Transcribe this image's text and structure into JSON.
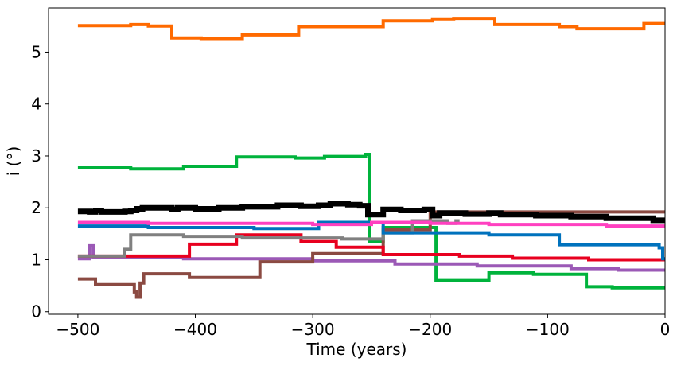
{
  "chart_data": {
    "type": "line",
    "title": "",
    "xlabel": "Time (years)",
    "ylabel": "i (°)",
    "xlim": [
      -525,
      0
    ],
    "ylim": [
      -0.05,
      5.85
    ],
    "xticks": [
      -500,
      -400,
      -300,
      -200,
      -100,
      0
    ],
    "xtick_labels": [
      "−500",
      "−400",
      "−300",
      "−200",
      "−100",
      "0"
    ],
    "yticks": [
      0,
      1,
      2,
      3,
      4,
      5
    ],
    "ytick_labels": [
      "0",
      "1",
      "2",
      "3",
      "4",
      "5"
    ],
    "grid": false,
    "legend": "none",
    "series": [
      {
        "color": "#ff6a00",
        "width": 4,
        "points": [
          [
            -500,
            5.51
          ],
          [
            -455,
            5.51
          ],
          [
            -455,
            5.53
          ],
          [
            -440,
            5.53
          ],
          [
            -440,
            5.5
          ],
          [
            -420,
            5.5
          ],
          [
            -420,
            5.27
          ],
          [
            -395,
            5.27
          ],
          [
            -395,
            5.26
          ],
          [
            -360,
            5.26
          ],
          [
            -360,
            5.33
          ],
          [
            -312,
            5.33
          ],
          [
            -312,
            5.49
          ],
          [
            -240,
            5.49
          ],
          [
            -240,
            5.6
          ],
          [
            -198,
            5.6
          ],
          [
            -198,
            5.64
          ],
          [
            -180,
            5.64
          ],
          [
            -180,
            5.65
          ],
          [
            -145,
            5.65
          ],
          [
            -145,
            5.53
          ],
          [
            -90,
            5.53
          ],
          [
            -90,
            5.49
          ],
          [
            -75,
            5.49
          ],
          [
            -75,
            5.45
          ],
          [
            -18,
            5.45
          ],
          [
            -18,
            5.55
          ],
          [
            0,
            5.55
          ]
        ]
      },
      {
        "color": "#00b33c",
        "width": 4,
        "points": [
          [
            -500,
            2.77
          ],
          [
            -455,
            2.77
          ],
          [
            -455,
            2.75
          ],
          [
            -410,
            2.75
          ],
          [
            -410,
            2.8
          ],
          [
            -365,
            2.8
          ],
          [
            -365,
            2.98
          ],
          [
            -315,
            2.98
          ],
          [
            -315,
            2.96
          ],
          [
            -290,
            2.96
          ],
          [
            -290,
            2.99
          ],
          [
            -255,
            2.99
          ],
          [
            -255,
            3.03
          ],
          [
            -252,
            3.03
          ],
          [
            -252,
            1.35
          ],
          [
            -240,
            1.35
          ],
          [
            -240,
            1.62
          ],
          [
            -195,
            1.62
          ],
          [
            -195,
            0.6
          ],
          [
            -150,
            0.6
          ],
          [
            -150,
            0.75
          ],
          [
            -112,
            0.75
          ],
          [
            -112,
            0.72
          ],
          [
            -67,
            0.72
          ],
          [
            -67,
            0.48
          ],
          [
            -45,
            0.48
          ],
          [
            -45,
            0.46
          ],
          [
            0,
            0.46
          ]
        ]
      },
      {
        "color": "#9b59b6",
        "width": 4,
        "points": [
          [
            -500,
            1.02
          ],
          [
            -490,
            1.02
          ],
          [
            -490,
            1.27
          ],
          [
            -487,
            1.27
          ],
          [
            -487,
            1.05
          ],
          [
            -410,
            1.05
          ],
          [
            -410,
            1.02
          ],
          [
            -300,
            1.02
          ],
          [
            -300,
            0.98
          ],
          [
            -230,
            0.98
          ],
          [
            -230,
            0.92
          ],
          [
            -160,
            0.92
          ],
          [
            -160,
            0.88
          ],
          [
            -80,
            0.88
          ],
          [
            -80,
            0.83
          ],
          [
            -40,
            0.83
          ],
          [
            -40,
            0.8
          ],
          [
            0,
            0.8
          ]
        ]
      },
      {
        "color": "#8b4a42",
        "width": 4,
        "points": [
          [
            -500,
            0.63
          ],
          [
            -485,
            0.63
          ],
          [
            -485,
            0.52
          ],
          [
            -452,
            0.52
          ],
          [
            -452,
            0.38
          ],
          [
            -450,
            0.38
          ],
          [
            -450,
            0.28
          ],
          [
            -447,
            0.28
          ],
          [
            -447,
            0.55
          ],
          [
            -444,
            0.55
          ],
          [
            -444,
            0.73
          ],
          [
            -405,
            0.73
          ],
          [
            -405,
            0.66
          ],
          [
            -345,
            0.66
          ],
          [
            -345,
            0.96
          ],
          [
            -300,
            0.96
          ],
          [
            -300,
            1.12
          ],
          [
            -240,
            1.12
          ],
          [
            -240,
            1.58
          ],
          [
            -200,
            1.58
          ],
          [
            -200,
            1.92
          ],
          [
            0,
            1.92
          ]
        ]
      },
      {
        "color": "#e8001f",
        "width": 4,
        "points": [
          [
            -500,
            1.07
          ],
          [
            -405,
            1.07
          ],
          [
            -405,
            1.3
          ],
          [
            -365,
            1.3
          ],
          [
            -365,
            1.48
          ],
          [
            -310,
            1.48
          ],
          [
            -310,
            1.35
          ],
          [
            -280,
            1.35
          ],
          [
            -280,
            1.24
          ],
          [
            -240,
            1.24
          ],
          [
            -240,
            1.1
          ],
          [
            -175,
            1.1
          ],
          [
            -175,
            1.07
          ],
          [
            -130,
            1.07
          ],
          [
            -130,
            1.03
          ],
          [
            -65,
            1.03
          ],
          [
            -65,
            1.0
          ],
          [
            0,
            1.0
          ]
        ]
      },
      {
        "color": "#808080",
        "width": 4,
        "points": [
          [
            -500,
            1.07
          ],
          [
            -460,
            1.07
          ],
          [
            -460,
            1.2
          ],
          [
            -455,
            1.2
          ],
          [
            -455,
            1.48
          ],
          [
            -410,
            1.48
          ],
          [
            -410,
            1.45
          ],
          [
            -360,
            1.45
          ],
          [
            -360,
            1.42
          ],
          [
            -275,
            1.42
          ],
          [
            -275,
            1.4
          ],
          [
            -240,
            1.4
          ],
          [
            -240,
            1.52
          ],
          [
            -215,
            1.52
          ],
          [
            -215,
            1.75
          ],
          [
            -185,
            1.75
          ],
          [
            -185,
            1.7
          ],
          [
            -178,
            1.7
          ],
          [
            -178,
            1.75
          ],
          [
            -175,
            1.75
          ]
        ]
      },
      {
        "color": "#0072bd",
        "width": 4,
        "points": [
          [
            -500,
            1.65
          ],
          [
            -440,
            1.65
          ],
          [
            -440,
            1.62
          ],
          [
            -350,
            1.62
          ],
          [
            -350,
            1.6
          ],
          [
            -295,
            1.6
          ],
          [
            -295,
            1.72
          ],
          [
            -240,
            1.72
          ],
          [
            -240,
            1.52
          ],
          [
            -150,
            1.52
          ],
          [
            -150,
            1.48
          ],
          [
            -90,
            1.48
          ],
          [
            -90,
            1.29
          ],
          [
            -5,
            1.29
          ],
          [
            -5,
            1.23
          ],
          [
            -2,
            1.23
          ],
          [
            -2,
            1.02
          ],
          [
            0,
            1.02
          ]
        ]
      },
      {
        "color": "#ff40c0",
        "width": 4,
        "points": [
          [
            -500,
            1.72
          ],
          [
            -440,
            1.72
          ],
          [
            -440,
            1.7
          ],
          [
            -300,
            1.7
          ],
          [
            -300,
            1.68
          ],
          [
            -250,
            1.68
          ],
          [
            -250,
            1.72
          ],
          [
            -200,
            1.72
          ],
          [
            -200,
            1.7
          ],
          [
            -150,
            1.7
          ],
          [
            -150,
            1.68
          ],
          [
            -50,
            1.68
          ],
          [
            -50,
            1.65
          ],
          [
            0,
            1.65
          ]
        ]
      },
      {
        "color": "#000000",
        "width": 7,
        "points": [
          [
            -500,
            1.93
          ],
          [
            -490,
            1.93
          ],
          [
            -490,
            1.92
          ],
          [
            -485,
            1.92
          ],
          [
            -485,
            1.95
          ],
          [
            -480,
            1.95
          ],
          [
            -480,
            1.92
          ],
          [
            -460,
            1.92
          ],
          [
            -460,
            1.93
          ],
          [
            -455,
            1.93
          ],
          [
            -455,
            1.95
          ],
          [
            -450,
            1.95
          ],
          [
            -450,
            1.98
          ],
          [
            -445,
            1.98
          ],
          [
            -445,
            2.0
          ],
          [
            -420,
            2.0
          ],
          [
            -420,
            1.97
          ],
          [
            -415,
            1.97
          ],
          [
            -415,
            2.0
          ],
          [
            -400,
            2.0
          ],
          [
            -400,
            1.98
          ],
          [
            -380,
            1.98
          ],
          [
            -380,
            2.0
          ],
          [
            -360,
            2.0
          ],
          [
            -360,
            2.02
          ],
          [
            -330,
            2.02
          ],
          [
            -330,
            2.05
          ],
          [
            -310,
            2.05
          ],
          [
            -310,
            2.03
          ],
          [
            -295,
            2.03
          ],
          [
            -295,
            2.05
          ],
          [
            -285,
            2.05
          ],
          [
            -285,
            2.08
          ],
          [
            -270,
            2.08
          ],
          [
            -270,
            2.06
          ],
          [
            -260,
            2.06
          ],
          [
            -260,
            2.04
          ],
          [
            -253,
            2.04
          ],
          [
            -253,
            1.87
          ],
          [
            -240,
            1.87
          ],
          [
            -240,
            1.97
          ],
          [
            -225,
            1.97
          ],
          [
            -225,
            1.95
          ],
          [
            -205,
            1.95
          ],
          [
            -205,
            1.97
          ],
          [
            -198,
            1.97
          ],
          [
            -198,
            1.85
          ],
          [
            -192,
            1.85
          ],
          [
            -192,
            1.9
          ],
          [
            -170,
            1.9
          ],
          [
            -170,
            1.88
          ],
          [
            -150,
            1.88
          ],
          [
            -150,
            1.9
          ],
          [
            -140,
            1.9
          ],
          [
            -140,
            1.87
          ],
          [
            -110,
            1.87
          ],
          [
            -110,
            1.85
          ],
          [
            -80,
            1.85
          ],
          [
            -80,
            1.83
          ],
          [
            -50,
            1.83
          ],
          [
            -50,
            1.8
          ],
          [
            -10,
            1.8
          ],
          [
            -10,
            1.76
          ],
          [
            0,
            1.76
          ]
        ]
      }
    ]
  }
}
